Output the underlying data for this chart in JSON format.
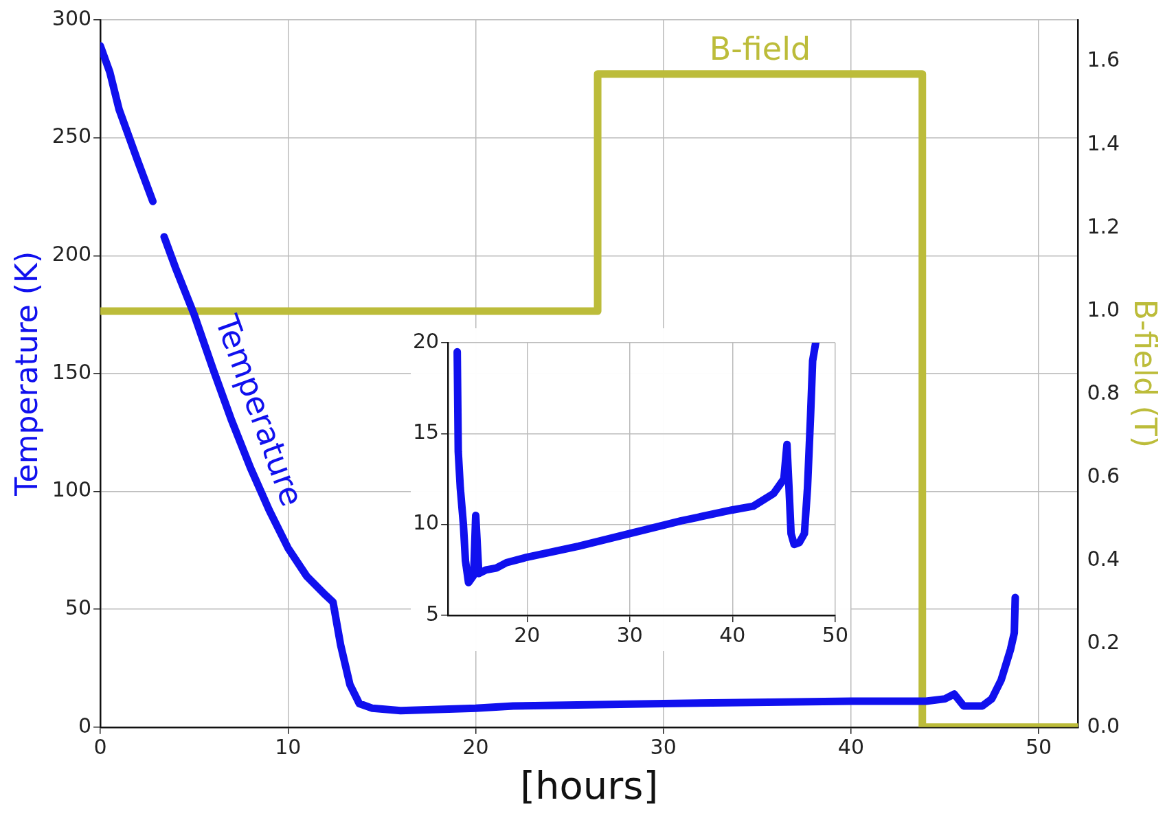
{
  "chart_data": [
    {
      "type": "line",
      "xlabel": "[hours]",
      "ylabel": "Temperature (K)",
      "y2label": "B-field (T)",
      "xlim": [
        0,
        52.1
      ],
      "xticks": [
        0,
        10,
        20,
        30,
        40,
        50
      ],
      "ylim": [
        0,
        300
      ],
      "yticks": [
        0,
        50,
        100,
        150,
        200,
        250,
        300
      ],
      "y2lim": [
        0,
        1.7
      ],
      "y2ticks": [
        {
          "value": 0,
          "label": "0.0"
        },
        {
          "value": 0.2,
          "label": "0.2"
        },
        {
          "value": 0.4,
          "label": "0.4"
        },
        {
          "value": 0.6,
          "label": "0.6"
        },
        {
          "value": 0.8,
          "label": "0.8"
        },
        {
          "value": 1,
          "label": "1.0"
        },
        {
          "value": 1.2,
          "label": "1.2"
        },
        {
          "value": 1.4,
          "label": "1.4"
        },
        {
          "value": 1.6,
          "label": "1.6"
        }
      ],
      "grid": true,
      "series": [
        {
          "name": "Temperature",
          "color": "#1010ee",
          "x": [
            0,
            0.5,
            1,
            2,
            2.8,
            3.1,
            3.4,
            4,
            5,
            6,
            7,
            8,
            9,
            10,
            11,
            12,
            12.4,
            12.8,
            13.3,
            13.8,
            14.5,
            16,
            20,
            22,
            30,
            40,
            44,
            45,
            45.5,
            46,
            47,
            47.5,
            48,
            48.5,
            48.7,
            48.75
          ],
          "values": [
            289,
            278,
            262,
            240,
            223,
            null,
            208,
            195,
            175,
            152,
            130,
            110,
            92,
            76,
            64,
            56,
            53,
            35,
            18,
            10,
            8,
            7,
            8,
            9,
            10,
            11,
            11,
            12,
            14,
            9,
            9,
            12,
            20,
            33,
            40,
            55
          ]
        },
        {
          "name": "B-field",
          "color": "#bcbc3a",
          "axis": "y2",
          "x": [
            0,
            26.5,
            26.5,
            43.8,
            43.8,
            52.1
          ],
          "values": [
            1,
            1,
            1.57,
            1.57,
            0,
            0
          ]
        }
      ]
    },
    {
      "type": "line",
      "xlim": [
        12.3,
        50
      ],
      "xticks": [
        20,
        30,
        40,
        50
      ],
      "ylim": [
        5,
        20
      ],
      "yticks": [
        5,
        10,
        15,
        20
      ],
      "grid": true,
      "series": [
        {
          "color": "#1010ee",
          "x": [
            13.2,
            13.3,
            13.5,
            13.8,
            14,
            14.3,
            14.8,
            15,
            15.3,
            16,
            17,
            18,
            20,
            25,
            30,
            35,
            40,
            42,
            44,
            45,
            45.3,
            45.5,
            45.7,
            46,
            46.5,
            47,
            47.3,
            47.6,
            47.8,
            48.1
          ],
          "values": [
            19.5,
            14,
            12,
            10,
            8,
            6.8,
            7.2,
            10.5,
            7.3,
            7.5,
            7.6,
            7.9,
            8.2,
            8.8,
            9.5,
            10.2,
            10.8,
            11,
            11.7,
            12.5,
            14.4,
            12,
            9.5,
            8.9,
            9,
            9.5,
            12,
            16,
            19,
            20
          ]
        }
      ]
    }
  ]
}
